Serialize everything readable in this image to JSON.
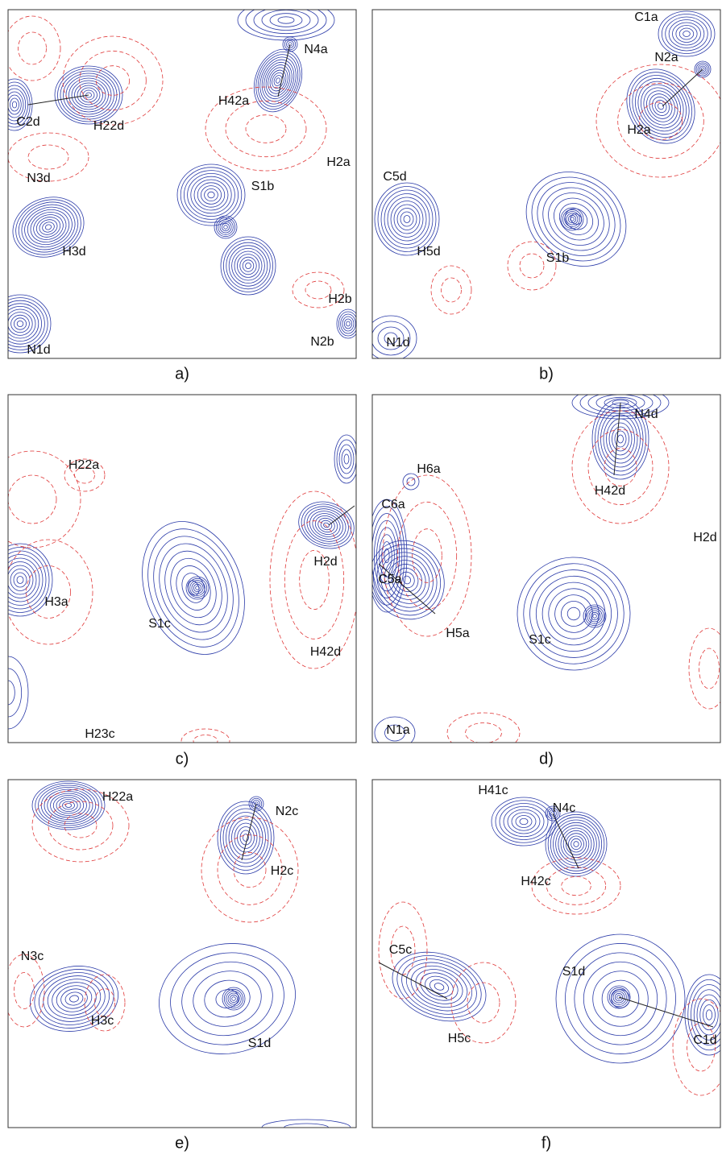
{
  "panels": [
    {
      "caption": "a)",
      "labels": [
        "C2d",
        "H22d",
        "N4a",
        "H42a",
        "H2a",
        "N3d",
        "S1b",
        "H3d",
        "H2b",
        "N2b",
        "N1d"
      ]
    },
    {
      "caption": "b)",
      "labels": [
        "C1a",
        "N2a",
        "H2a",
        "C5d",
        "H5d",
        "S1b",
        "N1d"
      ]
    },
    {
      "caption": "c)",
      "labels": [
        "H22a",
        "H2d",
        "H3a",
        "S1c",
        "H42d",
        "H23c"
      ]
    },
    {
      "caption": "d)",
      "labels": [
        "N4d",
        "H6a",
        "H42d",
        "C6a",
        "H2d",
        "C5a",
        "H5a",
        "S1c",
        "N1a"
      ]
    },
    {
      "caption": "e)",
      "labels": [
        "H22a",
        "N2c",
        "H2c",
        "N3c",
        "H3c",
        "S1d"
      ]
    },
    {
      "caption": "f)",
      "labels": [
        "H41c",
        "N4c",
        "H42c",
        "C5c",
        "S1d",
        "H5c",
        "C1d"
      ]
    }
  ]
}
